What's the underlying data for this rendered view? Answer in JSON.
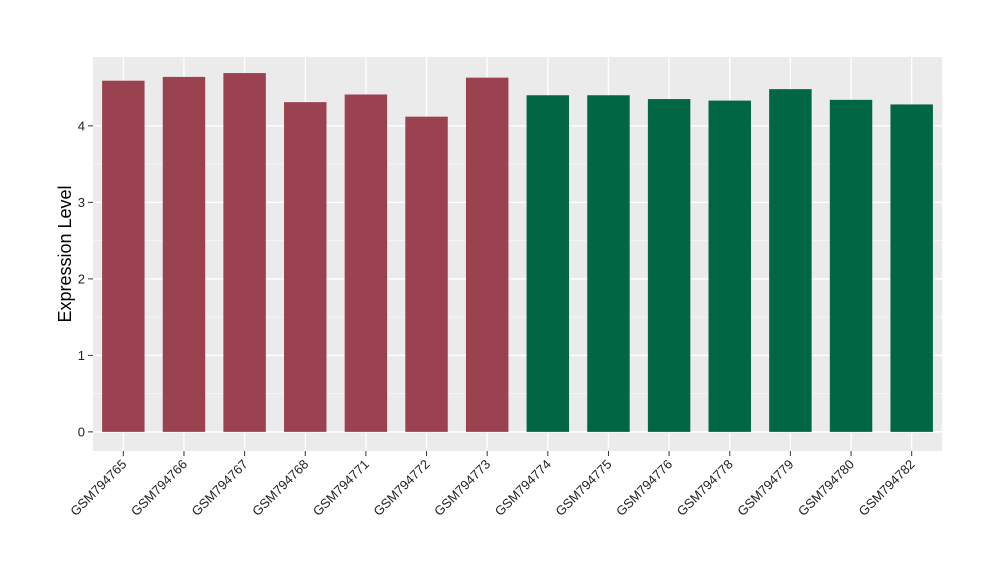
{
  "chart_data": {
    "type": "bar",
    "title": "",
    "xlabel": "",
    "ylabel": "Expression Level",
    "ylim": [
      -0.25,
      4.9
    ],
    "yticks": [
      0,
      1,
      2,
      3,
      4
    ],
    "grid": true,
    "background": "#ebebeb",
    "categories": [
      "GSM794765",
      "GSM794766",
      "GSM794767",
      "GSM794768",
      "GSM794771",
      "GSM794772",
      "GSM794773",
      "GSM794774",
      "GSM794775",
      "GSM794776",
      "GSM794778",
      "GSM794779",
      "GSM794780",
      "GSM794782"
    ],
    "values": [
      4.59,
      4.64,
      4.69,
      4.31,
      4.41,
      4.12,
      4.63,
      4.4,
      4.4,
      4.35,
      4.33,
      4.48,
      4.34,
      4.28
    ],
    "colors": [
      "#9a4250",
      "#9a4250",
      "#9a4250",
      "#9a4250",
      "#9a4250",
      "#9a4250",
      "#9a4250",
      "#006644",
      "#006644",
      "#006644",
      "#006644",
      "#006644",
      "#006644",
      "#006644"
    ]
  }
}
